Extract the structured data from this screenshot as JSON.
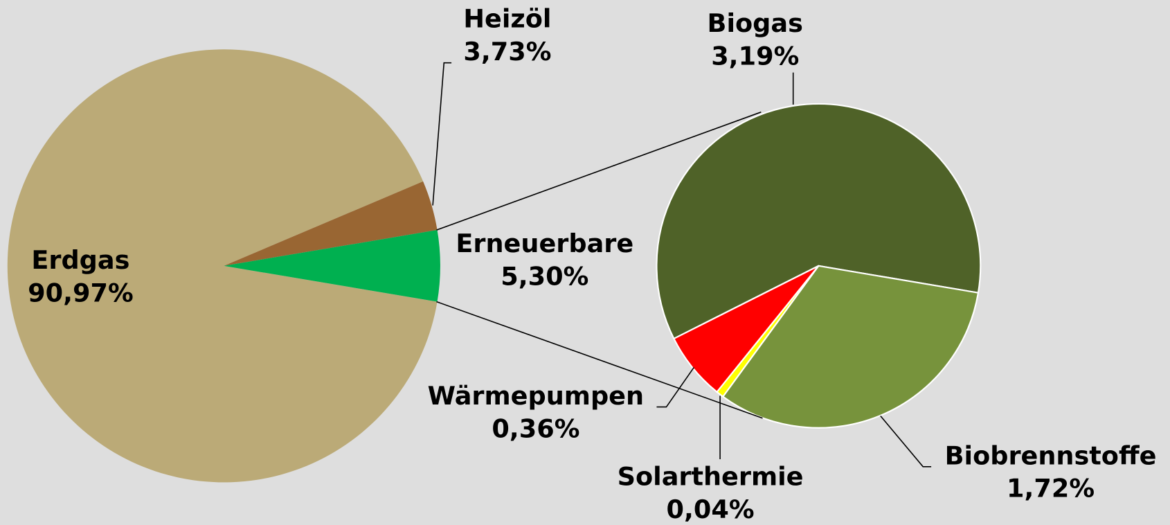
{
  "chart_data": {
    "type": "pie-of-pie",
    "categories": [
      "Erdgas",
      "Heizöl",
      "Erneuerbare"
    ],
    "values": [
      90.97,
      3.73,
      5.3
    ],
    "value_labels": [
      "90,97%",
      "3,73%",
      "5,30%"
    ],
    "colors": [
      "#bbaa77",
      "#996633",
      "#00b050"
    ],
    "detail": {
      "categories": [
        "Biogas",
        "Biobrennstoffe",
        "Solarthermie",
        "Wärmepumpen"
      ],
      "values": [
        3.19,
        1.72,
        0.04,
        0.36
      ],
      "value_labels": [
        "3,19%",
        "1,72%",
        "0,04%",
        "0,36%"
      ],
      "colors": [
        "#4f6228",
        "#77933c",
        "#ffff00",
        "#ff0000"
      ]
    }
  }
}
